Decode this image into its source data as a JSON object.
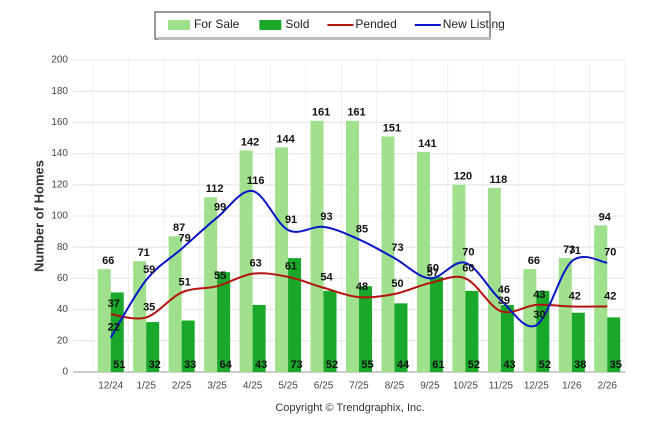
{
  "chart_data": {
    "type": "bar-line",
    "y_label": "Number of Homes",
    "caption": "Copyright © Trendgraphix, Inc.",
    "categories": [
      "12/24",
      "1/25",
      "2/25",
      "3/25",
      "4/25",
      "5/25",
      "6/25",
      "7/25",
      "8/25",
      "9/25",
      "10/25",
      "11/25",
      "12/25",
      "1/26",
      "2/26"
    ],
    "ylim": [
      0,
      200
    ],
    "yticks": [
      0,
      20,
      40,
      60,
      80,
      100,
      120,
      140,
      160,
      180,
      200
    ],
    "grid": true,
    "legend": "top",
    "series": [
      {
        "name": "For Sale",
        "kind": "bar",
        "color": "#9fe08c",
        "values": [
          66,
          71,
          87,
          112,
          142,
          144,
          161,
          161,
          151,
          141,
          120,
          118,
          66,
          73,
          94
        ]
      },
      {
        "name": "Sold",
        "kind": "bar",
        "color": "#19a82a",
        "values": [
          51,
          32,
          33,
          64,
          43,
          73,
          52,
          55,
          44,
          61,
          52,
          43,
          52,
          38,
          35
        ]
      },
      {
        "name": "Pended",
        "kind": "line",
        "color": "#b5120f",
        "values": [
          37,
          35,
          51,
          55,
          63,
          61,
          54,
          48,
          50,
          57,
          60,
          39,
          43,
          42,
          42
        ]
      },
      {
        "name": "New Listing",
        "kind": "line",
        "color": "#0a16c8",
        "values": [
          22,
          59,
          79,
          99,
          116,
          91,
          93,
          85,
          73,
          60,
          70,
          46,
          30,
          71,
          70
        ]
      }
    ]
  }
}
